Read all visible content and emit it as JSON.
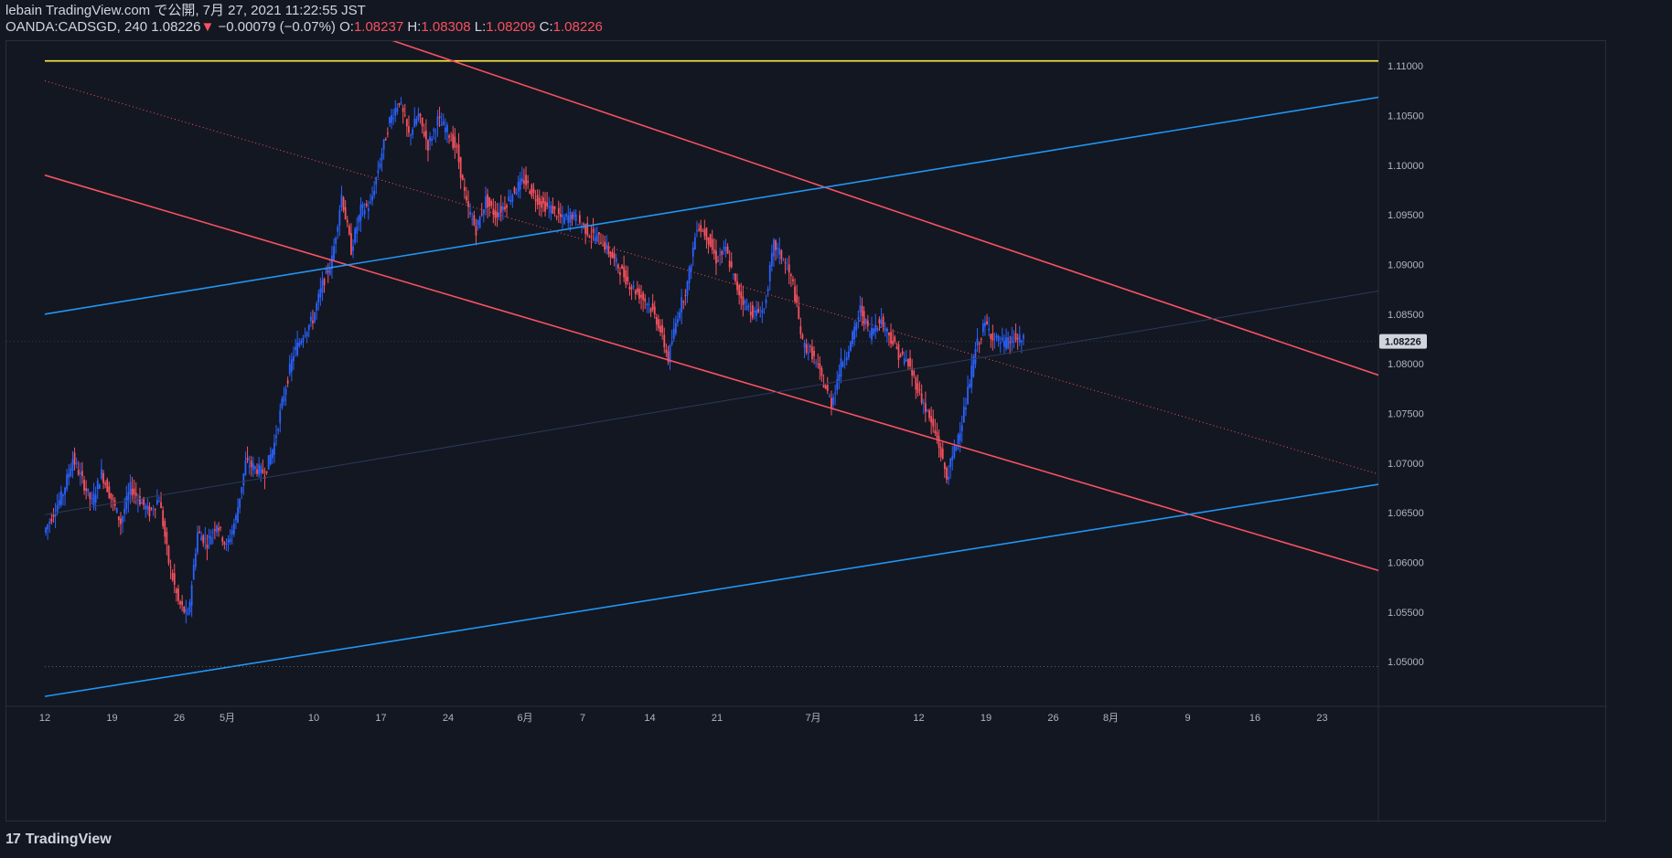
{
  "header": {
    "published_line": "lebain TradingView.com で公開, 7月 27, 2021 11:22:55 JST",
    "symbol": "OANDA:CADSGD, 240",
    "last": "1.08226",
    "change_arrow": "▼",
    "change": "−0.00079 (−0.07%)",
    "o_label": "O:",
    "o": "1.08237",
    "h_label": "H:",
    "h": "1.08308",
    "l_label": "L:",
    "l": "1.08209",
    "c_label": "C:",
    "c": "1.08226"
  },
  "footer": {
    "logo_mark": "17",
    "logo_text": "TradingView"
  },
  "colors": {
    "background": "#131722",
    "up": "#2962ff",
    "down": "#f7525f",
    "channel_red": "#f7525f",
    "channel_blue": "#2196f3",
    "resistance": "#ffeb3b",
    "price_label_bg": "#d1d4dc"
  },
  "chart_data": {
    "type": "candlestick",
    "symbol": "OANDA:CADSGD",
    "interval": "240",
    "ylim": [
      1.0455,
      1.1125
    ],
    "y_ticks": [
      "1.05000",
      "1.05500",
      "1.06000",
      "1.06500",
      "1.07000",
      "1.07500",
      "1.08000",
      "1.08500",
      "1.09000",
      "1.09500",
      "1.10000",
      "1.10500",
      "1.11000"
    ],
    "x_ticks": [
      {
        "label": "12",
        "day": 0
      },
      {
        "label": "19",
        "day": 7
      },
      {
        "label": "26",
        "day": 14
      },
      {
        "label": "5月",
        "day": 19
      },
      {
        "label": "10",
        "day": 28
      },
      {
        "label": "17",
        "day": 35
      },
      {
        "label": "24",
        "day": 42
      },
      {
        "label": "6月",
        "day": 50
      },
      {
        "label": "7",
        "day": 56
      },
      {
        "label": "14",
        "day": 63
      },
      {
        "label": "21",
        "day": 70
      },
      {
        "label": "7月",
        "day": 80
      },
      {
        "label": "12",
        "day": 91
      },
      {
        "label": "19",
        "day": 98
      },
      {
        "label": "26",
        "day": 105
      },
      {
        "label": "8月",
        "day": 111
      },
      {
        "label": "9",
        "day": 119
      },
      {
        "label": "16",
        "day": 126
      },
      {
        "label": "23",
        "day": 133
      }
    ],
    "last_price": "1.08226",
    "path": [
      [
        0,
        1.063
      ],
      [
        2,
        1.067
      ],
      [
        3,
        1.0705
      ],
      [
        5,
        1.066
      ],
      [
        6,
        1.069
      ],
      [
        8,
        1.064
      ],
      [
        9,
        1.0675
      ],
      [
        11,
        1.065
      ],
      [
        12,
        1.0665
      ],
      [
        13,
        1.06
      ],
      [
        14,
        1.056
      ],
      [
        15,
        1.0545
      ],
      [
        16,
        1.063
      ],
      [
        17,
        1.062
      ],
      [
        18,
        1.064
      ],
      [
        19,
        1.0615
      ],
      [
        20,
        1.0645
      ],
      [
        21,
        1.07
      ],
      [
        23,
        1.069
      ],
      [
        24,
        1.072
      ],
      [
        25,
        1.077
      ],
      [
        26,
        1.081
      ],
      [
        27,
        1.083
      ],
      [
        28,
        1.0845
      ],
      [
        29,
        1.088
      ],
      [
        30,
        1.0905
      ],
      [
        31,
        1.097
      ],
      [
        32,
        1.0915
      ],
      [
        33,
        1.0955
      ],
      [
        34,
        1.096
      ],
      [
        35,
        1.1005
      ],
      [
        36,
        1.1045
      ],
      [
        37,
        1.1065
      ],
      [
        38,
        1.103
      ],
      [
        39,
        1.105
      ],
      [
        40,
        1.102
      ],
      [
        41,
        1.1045
      ],
      [
        42,
        1.1035
      ],
      [
        43,
        1.1015
      ],
      [
        44,
        1.096
      ],
      [
        45,
        1.0935
      ],
      [
        46,
        1.0965
      ],
      [
        47,
        1.095
      ],
      [
        48,
        1.096
      ],
      [
        49,
        1.0975
      ],
      [
        50,
        1.0985
      ],
      [
        51,
        1.097
      ],
      [
        52,
        1.096
      ],
      [
        53,
        1.0955
      ],
      [
        54,
        1.0945
      ],
      [
        55,
        1.095
      ],
      [
        56,
        1.094
      ],
      [
        57,
        1.093
      ],
      [
        58,
        1.0925
      ],
      [
        59,
        1.091
      ],
      [
        60,
        1.0895
      ],
      [
        61,
        1.088
      ],
      [
        62,
        1.087
      ],
      [
        63,
        1.086
      ],
      [
        64,
        1.084
      ],
      [
        65,
        1.0805
      ],
      [
        66,
        1.085
      ],
      [
        67,
        1.088
      ],
      [
        68,
        1.094
      ],
      [
        69,
        1.093
      ],
      [
        70,
        1.0905
      ],
      [
        71,
        1.0915
      ],
      [
        72,
        1.088
      ],
      [
        73,
        1.086
      ],
      [
        74,
        1.085
      ],
      [
        75,
        1.0855
      ],
      [
        76,
        1.092
      ],
      [
        77,
        1.0905
      ],
      [
        78,
        1.088
      ],
      [
        79,
        1.082
      ],
      [
        80,
        1.081
      ],
      [
        81,
        1.0785
      ],
      [
        82,
        1.076
      ],
      [
        83,
        1.08
      ],
      [
        84,
        1.082
      ],
      [
        85,
        1.0855
      ],
      [
        86,
        1.083
      ],
      [
        87,
        1.0845
      ],
      [
        88,
        1.083
      ],
      [
        89,
        1.081
      ],
      [
        90,
        1.08
      ],
      [
        91,
        1.0775
      ],
      [
        92,
        1.075
      ],
      [
        93,
        1.0725
      ],
      [
        94,
        1.0685
      ],
      [
        95,
        1.072
      ],
      [
        96,
        1.076
      ],
      [
        97,
        1.0815
      ],
      [
        98,
        1.084
      ],
      [
        99,
        1.0825
      ],
      [
        100,
        1.082
      ],
      [
        101,
        1.0825
      ],
      [
        102,
        1.0823
      ]
    ],
    "drawn_lines": [
      {
        "name": "resistance-line",
        "color": "#ffeb3b",
        "style": "solid",
        "p1": [
          0,
          1.1105
        ],
        "p2": [
          143,
          1.1105
        ]
      },
      {
        "name": "upper-channel-line",
        "color": "#f7525f",
        "style": "solid",
        "p1": [
          12,
          1.1205
        ],
        "p2": [
          143,
          1.0775
        ]
      },
      {
        "name": "middle-channel-line",
        "color": "#f7525f",
        "style": "dotted",
        "p1": [
          0,
          1.1085
        ],
        "p2": [
          143,
          1.0677
        ]
      },
      {
        "name": "lower-channel-line",
        "color": "#f7525f",
        "style": "solid",
        "p1": [
          0,
          1.099
        ],
        "p2": [
          143,
          1.058
        ]
      },
      {
        "name": "upper-blue-trendline",
        "color": "#2196f3",
        "style": "solid",
        "p1": [
          0,
          1.085
        ],
        "p2": [
          143,
          1.1075
        ]
      },
      {
        "name": "lower-blue-trendline",
        "color": "#2196f3",
        "style": "solid",
        "p1": [
          0,
          1.0465
        ],
        "p2": [
          143,
          1.0685
        ]
      },
      {
        "name": "faint-trendline",
        "color": "#2a3a5a",
        "style": "solid",
        "p1": [
          0,
          1.0648
        ],
        "p2": [
          143,
          1.088
        ]
      },
      {
        "name": "support-dotted-line",
        "color": "#5d606b",
        "style": "dotted",
        "p1": [
          0,
          1.0495
        ],
        "p2": [
          143,
          1.0495
        ]
      }
    ]
  }
}
